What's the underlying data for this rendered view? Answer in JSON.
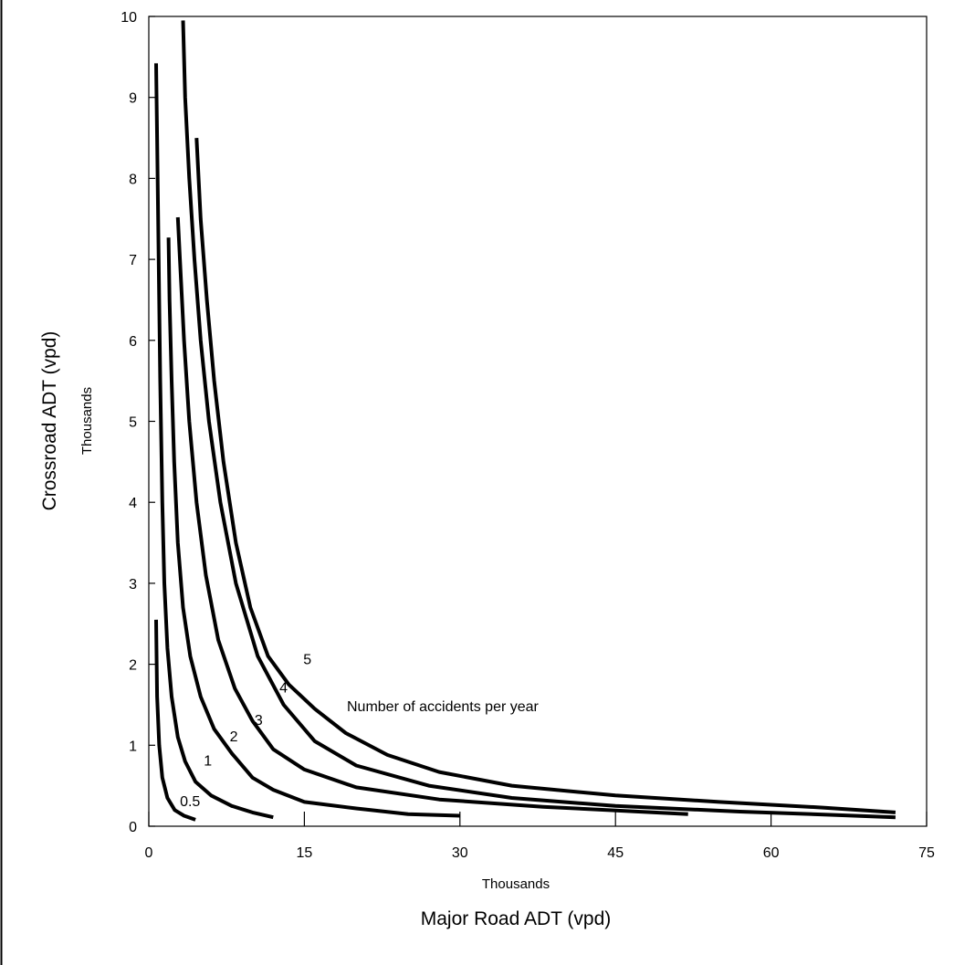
{
  "chart_data": {
    "type": "line",
    "title": "",
    "xlabel": "Major Road ADT (vpd)",
    "xlabel_units": "Thousands",
    "ylabel": "Crossroad ADT (vpd)",
    "ylabel_units": "Thousands",
    "xlim": [
      0,
      75
    ],
    "ylim": [
      0,
      10
    ],
    "x_ticks": [
      "0",
      "15",
      "30",
      "45",
      "60",
      "75"
    ],
    "y_ticks": [
      "0",
      "1",
      "2",
      "3",
      "4",
      "5",
      "6",
      "7",
      "8",
      "9",
      "10"
    ],
    "grid": false,
    "annotation": "Number of accidents per year",
    "line_color": "#000000",
    "series": [
      {
        "label": "0.5",
        "points": [
          [
            0.7,
            2.55
          ],
          [
            0.8,
            1.6
          ],
          [
            1.0,
            1.0
          ],
          [
            1.3,
            0.6
          ],
          [
            1.8,
            0.35
          ],
          [
            2.5,
            0.2
          ],
          [
            3.4,
            0.13
          ],
          [
            4.5,
            0.08
          ]
        ]
      },
      {
        "label": "1",
        "points": [
          [
            0.7,
            9.42
          ],
          [
            0.8,
            8.5
          ],
          [
            0.95,
            7.0
          ],
          [
            1.1,
            5.5
          ],
          [
            1.3,
            4.0
          ],
          [
            1.5,
            3.0
          ],
          [
            1.8,
            2.2
          ],
          [
            2.2,
            1.6
          ],
          [
            2.8,
            1.1
          ],
          [
            3.5,
            0.8
          ],
          [
            4.5,
            0.55
          ],
          [
            6.0,
            0.38
          ],
          [
            8.0,
            0.25
          ],
          [
            10.0,
            0.17
          ],
          [
            12.0,
            0.11
          ]
        ]
      },
      {
        "label": "2",
        "points": [
          [
            1.9,
            7.27
          ],
          [
            2.0,
            6.5
          ],
          [
            2.2,
            5.5
          ],
          [
            2.45,
            4.5
          ],
          [
            2.8,
            3.5
          ],
          [
            3.3,
            2.7
          ],
          [
            4.0,
            2.1
          ],
          [
            5.0,
            1.6
          ],
          [
            6.3,
            1.2
          ],
          [
            8.0,
            0.9
          ],
          [
            10.0,
            0.6
          ],
          [
            12.0,
            0.45
          ],
          [
            15.0,
            0.3
          ],
          [
            20.0,
            0.22
          ],
          [
            25.0,
            0.15
          ],
          [
            30.0,
            0.13
          ]
        ]
      },
      {
        "label": "3",
        "points": [
          [
            2.8,
            7.52
          ],
          [
            3.0,
            7.0
          ],
          [
            3.4,
            6.0
          ],
          [
            3.9,
            5.0
          ],
          [
            4.6,
            4.0
          ],
          [
            5.5,
            3.1
          ],
          [
            6.7,
            2.3
          ],
          [
            8.3,
            1.7
          ],
          [
            10.0,
            1.3
          ],
          [
            12.0,
            0.95
          ],
          [
            15.0,
            0.7
          ],
          [
            20.0,
            0.48
          ],
          [
            28.0,
            0.33
          ],
          [
            38.0,
            0.24
          ],
          [
            52.0,
            0.15
          ]
        ]
      },
      {
        "label": "4",
        "points": [
          [
            3.3,
            9.95
          ],
          [
            3.5,
            9.0
          ],
          [
            3.9,
            8.0
          ],
          [
            4.4,
            7.0
          ],
          [
            5.0,
            6.0
          ],
          [
            5.8,
            5.0
          ],
          [
            6.9,
            4.0
          ],
          [
            8.4,
            3.0
          ],
          [
            10.5,
            2.1
          ],
          [
            13.0,
            1.5
          ],
          [
            16.0,
            1.05
          ],
          [
            20.0,
            0.75
          ],
          [
            27.0,
            0.5
          ],
          [
            35.0,
            0.35
          ],
          [
            45.0,
            0.25
          ],
          [
            57.0,
            0.18
          ],
          [
            66.0,
            0.14
          ],
          [
            72.0,
            0.11
          ]
        ]
      },
      {
        "label": "5",
        "points": [
          [
            4.6,
            8.5
          ],
          [
            5.0,
            7.5
          ],
          [
            5.6,
            6.5
          ],
          [
            6.3,
            5.5
          ],
          [
            7.2,
            4.5
          ],
          [
            8.4,
            3.5
          ],
          [
            9.8,
            2.7
          ],
          [
            11.5,
            2.1
          ],
          [
            13.5,
            1.75
          ],
          [
            16.0,
            1.45
          ],
          [
            19.0,
            1.15
          ],
          [
            23.0,
            0.88
          ],
          [
            28.0,
            0.67
          ],
          [
            35.0,
            0.5
          ],
          [
            45.0,
            0.38
          ],
          [
            55.0,
            0.3
          ],
          [
            65.0,
            0.23
          ],
          [
            72.0,
            0.17
          ]
        ]
      }
    ]
  }
}
